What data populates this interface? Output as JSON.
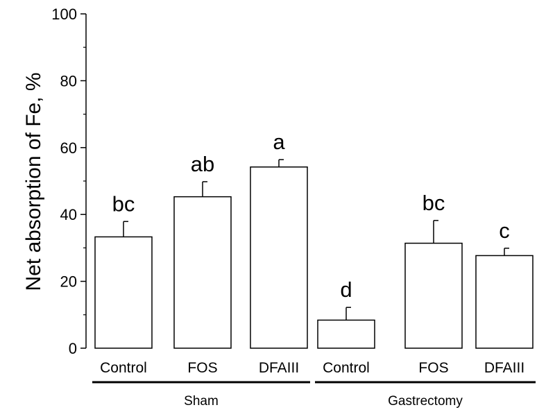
{
  "chart_data": {
    "type": "bar",
    "title": "",
    "xlabel": "",
    "ylabel": "Net absorption of Fe, %",
    "ylim": [
      0,
      100
    ],
    "yticks": [
      "0",
      "20",
      "40",
      "60",
      "80",
      "100"
    ],
    "grid": false,
    "categories": [
      "Control",
      "FOS",
      "DFAIII",
      "Control",
      "FOS",
      "DFAIII"
    ],
    "values": [
      33.3,
      45.3,
      54.2,
      8.4,
      31.4,
      27.7
    ],
    "errors": [
      4.6,
      4.5,
      2.2,
      3.8,
      6.8,
      2.2
    ],
    "significance": [
      "bc",
      "ab",
      "a",
      "d",
      "bc",
      "c"
    ],
    "groups": [
      {
        "label": "Sham",
        "indices": [
          0,
          1,
          2
        ]
      },
      {
        "label": "Gastrectomy",
        "indices": [
          3,
          4,
          5
        ]
      }
    ],
    "colors": {
      "bar_fill": "#ffffff",
      "stroke": "#000000"
    }
  }
}
